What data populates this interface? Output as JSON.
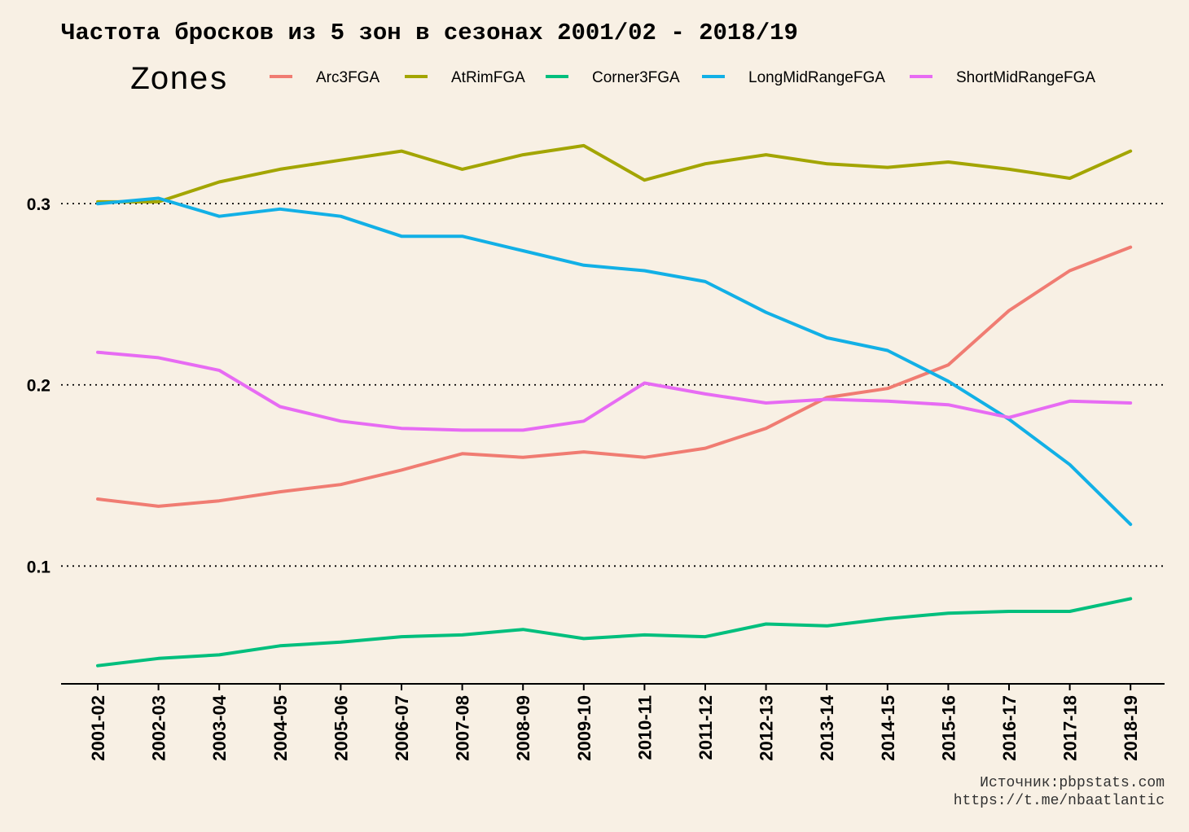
{
  "chart_data": {
    "type": "line",
    "title": "Частота бросков из 5 зон в сезонах 2001/02 - 2018/19",
    "legend": {
      "title": "Zones",
      "position": "top"
    },
    "xlabel": "",
    "ylabel": "",
    "categories": [
      "2001-02",
      "2002-03",
      "2003-04",
      "2004-05",
      "2005-06",
      "2006-07",
      "2007-08",
      "2008-09",
      "2009-10",
      "2010-11",
      "2011-12",
      "2012-13",
      "2013-14",
      "2014-15",
      "2015-16",
      "2016-17",
      "2017-18",
      "2018-19"
    ],
    "ylim": [
      0.035,
      0.345
    ],
    "yticks": [
      0.1,
      0.2,
      0.3
    ],
    "ytick_labels": [
      "0.1",
      "0.2",
      "0.3"
    ],
    "grid": {
      "horizontal_major": true,
      "style": "dotted"
    },
    "series": [
      {
        "name": "Arc3FGA",
        "color": "#f07c72",
        "values": [
          0.137,
          0.133,
          0.136,
          0.141,
          0.145,
          0.153,
          0.162,
          0.16,
          0.163,
          0.16,
          0.165,
          0.176,
          0.193,
          0.198,
          0.211,
          0.241,
          0.263,
          0.276
        ]
      },
      {
        "name": "AtRimFGA",
        "color": "#a3a500",
        "values": [
          0.301,
          0.301,
          0.312,
          0.319,
          0.324,
          0.329,
          0.319,
          0.327,
          0.332,
          0.313,
          0.322,
          0.327,
          0.322,
          0.32,
          0.323,
          0.319,
          0.314,
          0.329
        ]
      },
      {
        "name": "Corner3FGA",
        "color": "#00bf7d",
        "values": [
          0.045,
          0.049,
          0.051,
          0.056,
          0.058,
          0.061,
          0.062,
          0.065,
          0.06,
          0.062,
          0.061,
          0.068,
          0.067,
          0.071,
          0.074,
          0.075,
          0.075,
          0.082
        ]
      },
      {
        "name": "LongMidRangeFGA",
        "color": "#12b0e6",
        "values": [
          0.3,
          0.303,
          0.293,
          0.297,
          0.293,
          0.282,
          0.282,
          0.274,
          0.266,
          0.263,
          0.257,
          0.24,
          0.226,
          0.219,
          0.202,
          0.181,
          0.156,
          0.123
        ]
      },
      {
        "name": "ShortMidRangeFGA",
        "color": "#e76bf3",
        "values": [
          0.218,
          0.215,
          0.208,
          0.188,
          0.18,
          0.176,
          0.175,
          0.175,
          0.18,
          0.201,
          0.195,
          0.19,
          0.192,
          0.191,
          0.189,
          0.182,
          0.191,
          0.19
        ]
      }
    ],
    "caption": [
      "Источник:pbpstats.com",
      "https://t.me/nbaatlantic"
    ]
  }
}
